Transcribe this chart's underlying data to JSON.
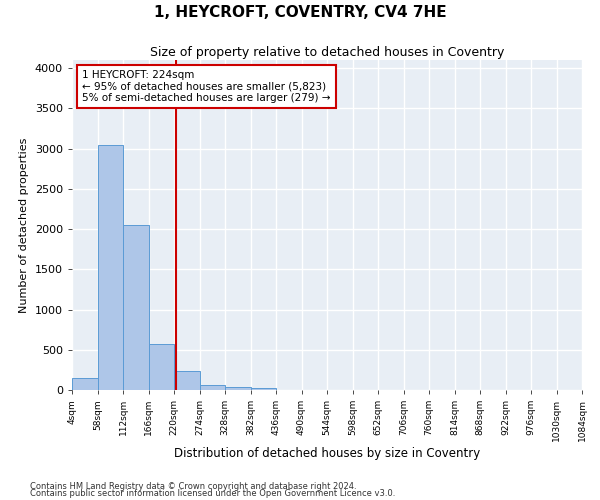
{
  "title": "1, HEYCROFT, COVENTRY, CV4 7HE",
  "subtitle": "Size of property relative to detached houses in Coventry",
  "xlabel": "Distribution of detached houses by size in Coventry",
  "ylabel": "Number of detached properties",
  "footnote1": "Contains HM Land Registry data © Crown copyright and database right 2024.",
  "footnote2": "Contains public sector information licensed under the Open Government Licence v3.0.",
  "bin_labels": [
    "4sqm",
    "58sqm",
    "112sqm",
    "166sqm",
    "220sqm",
    "274sqm",
    "328sqm",
    "382sqm",
    "436sqm",
    "490sqm",
    "544sqm",
    "598sqm",
    "652sqm",
    "706sqm",
    "760sqm",
    "814sqm",
    "868sqm",
    "922sqm",
    "976sqm",
    "1030sqm",
    "1084sqm"
  ],
  "bar_values": [
    150,
    3050,
    2050,
    570,
    235,
    65,
    35,
    30,
    0,
    0,
    0,
    0,
    0,
    0,
    0,
    0,
    0,
    0,
    0,
    0
  ],
  "bar_color": "#aec6e8",
  "bar_edge_color": "#5b9bd5",
  "property_sqm": 224,
  "property_label": "1 HEYCROFT: 224sqm",
  "annotation_line1": "← 95% of detached houses are smaller (5,823)",
  "annotation_line2": "5% of semi-detached houses are larger (279) →",
  "red_line_color": "#cc0000",
  "annotation_box_color": "#ffffff",
  "annotation_box_edge": "#cc0000",
  "ylim": [
    0,
    4100
  ],
  "yticks": [
    0,
    500,
    1000,
    1500,
    2000,
    2500,
    3000,
    3500,
    4000
  ],
  "background_color": "#e8eef5",
  "grid_color": "#ffffff",
  "title_fontsize": 11,
  "subtitle_fontsize": 9
}
